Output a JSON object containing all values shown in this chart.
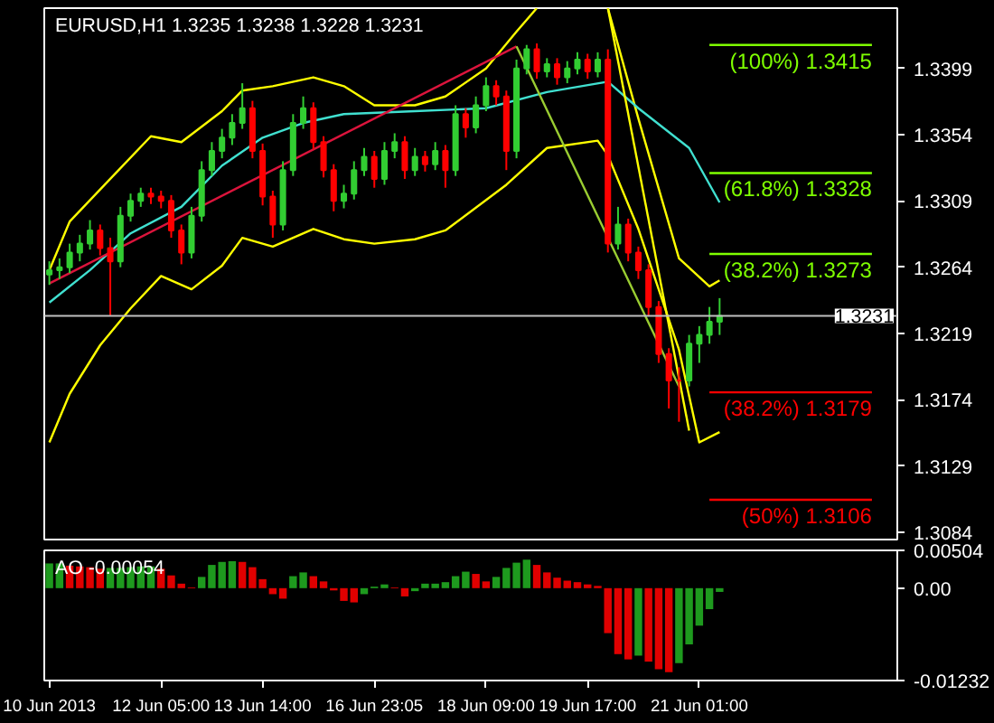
{
  "chart_data": [
    {
      "type": "candlestick",
      "title": "EURUSD,H1 1.3235 1.3238 1.3228 1.3231",
      "tick_labels": "y",
      "grid": false,
      "ylim": [
        1.3079,
        1.344
      ],
      "yticks": [
        1.3399,
        1.3354,
        1.3309,
        1.3264,
        1.3219,
        1.3174,
        1.3129,
        1.3084
      ],
      "categories": [
        null,
        null,
        null,
        null,
        null,
        null,
        null,
        null,
        null,
        null,
        null,
        null,
        null,
        null,
        null,
        null,
        null,
        null,
        null,
        null,
        null,
        null,
        null,
        null,
        null,
        null,
        null,
        null,
        null,
        null,
        null,
        null,
        null,
        null,
        null,
        null,
        null,
        null,
        null,
        null,
        null,
        null,
        null,
        null,
        null,
        null,
        null,
        null,
        null,
        null,
        null,
        null,
        null,
        null,
        null,
        null,
        null,
        null,
        null,
        null,
        null,
        null,
        null,
        null,
        null,
        null,
        null,
        null,
        null,
        null,
        null,
        null,
        null,
        null,
        null,
        null,
        null,
        null,
        null,
        null,
        null,
        null,
        null,
        null
      ],
      "ohlc": [
        [
          1.3259,
          1.3268,
          1.3252,
          1.3262
        ],
        [
          1.3262,
          1.327,
          1.3256,
          1.3264
        ],
        [
          1.3264,
          1.328,
          1.326,
          1.3274
        ],
        [
          1.3274,
          1.3286,
          1.3268,
          1.328
        ],
        [
          1.328,
          1.3296,
          1.3276,
          1.3289
        ],
        [
          1.3289,
          1.3293,
          1.3272,
          1.3277
        ],
        [
          1.3277,
          1.3284,
          1.3231,
          1.3268
        ],
        [
          1.3268,
          1.3305,
          1.3264,
          1.3299
        ],
        [
          1.3299,
          1.3314,
          1.3295,
          1.3309
        ],
        [
          1.3309,
          1.3318,
          1.3305,
          1.3314
        ],
        [
          1.3314,
          1.3318,
          1.3307,
          1.3312
        ],
        [
          1.3312,
          1.3316,
          1.3304,
          1.3309
        ],
        [
          1.3309,
          1.3313,
          1.3284,
          1.3289
        ],
        [
          1.3289,
          1.3293,
          1.3266,
          1.3274
        ],
        [
          1.3274,
          1.3305,
          1.327,
          1.3299
        ],
        [
          1.3299,
          1.3336,
          1.3295,
          1.333
        ],
        [
          1.333,
          1.3349,
          1.3326,
          1.3343
        ],
        [
          1.3343,
          1.3358,
          1.3338,
          1.3352
        ],
        [
          1.3352,
          1.3368,
          1.3347,
          1.3362
        ],
        [
          1.3362,
          1.3389,
          1.3358,
          1.3372
        ],
        [
          1.3372,
          1.3377,
          1.3338,
          1.3343
        ],
        [
          1.3343,
          1.3348,
          1.3306,
          1.3312
        ],
        [
          1.3312,
          1.3316,
          1.3284,
          1.3293
        ],
        [
          1.3293,
          1.3336,
          1.3289,
          1.333
        ],
        [
          1.333,
          1.3368,
          1.3326,
          1.3362
        ],
        [
          1.3362,
          1.338,
          1.3358,
          1.3372
        ],
        [
          1.3372,
          1.3376,
          1.3344,
          1.3349
        ],
        [
          1.3349,
          1.3353,
          1.3325,
          1.333
        ],
        [
          1.333,
          1.3334,
          1.3302,
          1.3309
        ],
        [
          1.3309,
          1.332,
          1.3304,
          1.3314
        ],
        [
          1.3314,
          1.3336,
          1.331,
          1.333
        ],
        [
          1.333,
          1.3345,
          1.3326,
          1.3339
        ],
        [
          1.3339,
          1.3343,
          1.3318,
          1.3324
        ],
        [
          1.3324,
          1.3349,
          1.332,
          1.3343
        ],
        [
          1.3343,
          1.3355,
          1.3338,
          1.3349
        ],
        [
          1.3349,
          1.3353,
          1.3324,
          1.333
        ],
        [
          1.333,
          1.3345,
          1.3326,
          1.3339
        ],
        [
          1.3339,
          1.3343,
          1.3329,
          1.3334
        ],
        [
          1.3334,
          1.3349,
          1.333,
          1.3343
        ],
        [
          1.3343,
          1.3347,
          1.3318,
          1.333
        ],
        [
          1.333,
          1.3374,
          1.3326,
          1.3368
        ],
        [
          1.3368,
          1.3372,
          1.3352,
          1.3359
        ],
        [
          1.3359,
          1.338,
          1.3355,
          1.3374
        ],
        [
          1.3374,
          1.3393,
          1.337,
          1.3387
        ],
        [
          1.3387,
          1.3391,
          1.3374,
          1.338
        ],
        [
          1.338,
          1.3384,
          1.333,
          1.3343
        ],
        [
          1.3343,
          1.3405,
          1.3338,
          1.3399
        ],
        [
          1.3399,
          1.3415,
          1.3395,
          1.3412
        ],
        [
          1.3412,
          1.3416,
          1.3392,
          1.3397
        ],
        [
          1.3397,
          1.3406,
          1.3393,
          1.3402
        ],
        [
          1.3402,
          1.3406,
          1.3388,
          1.3393
        ],
        [
          1.3393,
          1.3404,
          1.3389,
          1.3399
        ],
        [
          1.3399,
          1.341,
          1.3395,
          1.3405
        ],
        [
          1.3405,
          1.3409,
          1.3392,
          1.3397
        ],
        [
          1.3397,
          1.341,
          1.3393,
          1.3405
        ],
        [
          1.3405,
          1.3412,
          1.3274,
          1.328
        ],
        [
          1.328,
          1.3305,
          1.3276,
          1.3293
        ],
        [
          1.3293,
          1.3297,
          1.3268,
          1.3274
        ],
        [
          1.3274,
          1.3278,
          1.3256,
          1.3262
        ],
        [
          1.3262,
          1.3266,
          1.3231,
          1.3237
        ],
        [
          1.3237,
          1.3241,
          1.3199,
          1.3205
        ],
        [
          1.3205,
          1.3209,
          1.3168,
          1.3187
        ],
        [
          1.3187,
          1.3196,
          1.3159,
          1.3187
        ],
        [
          1.3187,
          1.3218,
          1.3183,
          1.3212
        ],
        [
          1.3212,
          1.3224,
          1.3199,
          1.3218
        ],
        [
          1.3218,
          1.3237,
          1.3212,
          1.3227
        ],
        [
          1.3227,
          1.3243,
          1.3218,
          1.3231
        ],
        null,
        null,
        null,
        null,
        null,
        null,
        null,
        null,
        null,
        null,
        null,
        null,
        null,
        null,
        null,
        null,
        null
      ],
      "colors": [
        "#32cd32",
        "#32cd32",
        "#32cd32",
        "#32cd32",
        "#32cd32",
        "#ff0000",
        "#ff0000",
        "#32cd32",
        "#32cd32",
        "#32cd32",
        "#ff0000",
        "#ff0000",
        "#ff0000",
        "#ff0000",
        "#32cd32",
        "#32cd32",
        "#32cd32",
        "#32cd32",
        "#32cd32",
        "#32cd32",
        "#ff0000",
        "#ff0000",
        "#ff0000",
        "#32cd32",
        "#32cd32",
        "#32cd32",
        "#ff0000",
        "#ff0000",
        "#ff0000",
        "#32cd32",
        "#32cd32",
        "#32cd32",
        "#ff0000",
        "#32cd32",
        "#32cd32",
        "#ff0000",
        "#32cd32",
        "#ff0000",
        "#32cd32",
        "#ff0000",
        "#32cd32",
        "#ff0000",
        "#32cd32",
        "#32cd32",
        "#ff0000",
        "#ff0000",
        "#32cd32",
        "#32cd32",
        "#ff0000",
        "#32cd32",
        "#ff0000",
        "#32cd32",
        "#32cd32",
        "#ff0000",
        "#32cd32",
        "#ff0000",
        "#32cd32",
        "#ff0000",
        "#ff0000",
        "#ff0000",
        "#ff0000",
        "#ff0000",
        "#ff0000",
        "#32cd32",
        "#32cd32",
        "#32cd32",
        "#32cd32",
        null,
        null,
        null,
        null,
        null,
        null,
        null,
        null,
        null,
        null,
        null,
        null,
        null,
        null,
        null,
        null,
        null
      ],
      "series": [
        {
          "type": "line",
          "color": "#ffff00",
          "values": [
            1.3262,
            null,
            1.3295,
            null,
            null,
            null,
            1.3324,
            null,
            null,
            null,
            1.3353,
            null,
            null,
            1.3349,
            null,
            null,
            null,
            1.337,
            null,
            1.3384,
            null,
            null,
            1.3387,
            null,
            null,
            null,
            1.3393,
            null,
            null,
            1.3387,
            null,
            null,
            1.3374,
            null,
            null,
            null,
            1.3374,
            null,
            null,
            1.338,
            null,
            null,
            null,
            1.3399,
            null,
            null,
            1.3424,
            null,
            1.344,
            null,
            null,
            null,
            null,
            null,
            null,
            null,
            null,
            null,
            null,
            null,
            null,
            null,
            null,
            null,
            null,
            null,
            null,
            null,
            null,
            null,
            null,
            null,
            null,
            null,
            null,
            null,
            null,
            null,
            null,
            null,
            null,
            null,
            null,
            null
          ]
        },
        {
          "type": "line",
          "color": "#ffff00",
          "values": [
            null,
            null,
            null,
            null,
            null,
            null,
            null,
            null,
            null,
            null,
            null,
            null,
            null,
            null,
            null,
            null,
            null,
            null,
            null,
            null,
            null,
            null,
            null,
            null,
            null,
            null,
            null,
            null,
            null,
            null,
            null,
            null,
            null,
            null,
            null,
            null,
            null,
            null,
            null,
            null,
            null,
            null,
            null,
            null,
            null,
            null,
            null,
            null,
            null,
            null,
            null,
            null,
            null,
            null,
            null,
            1.344,
            null,
            null,
            1.3365,
            null,
            null,
            null,
            1.327,
            null,
            null,
            1.3251,
            1.3255,
            null,
            null,
            null,
            null,
            null,
            null,
            null,
            null,
            null,
            null,
            null,
            null,
            null,
            null,
            null,
            null,
            null
          ]
        },
        {
          "type": "line",
          "color": "#ffff00",
          "values": [
            1.3145,
            null,
            1.3178,
            null,
            null,
            1.3211,
            null,
            null,
            1.3236,
            null,
            null,
            1.3258,
            null,
            null,
            1.3249,
            null,
            null,
            1.3265,
            null,
            1.3284,
            null,
            null,
            1.3278,
            null,
            null,
            null,
            1.329,
            null,
            null,
            1.3283,
            null,
            null,
            1.328,
            null,
            null,
            null,
            1.3283,
            null,
            null,
            1.3289,
            null,
            null,
            null,
            null,
            null,
            1.332,
            null,
            null,
            null,
            1.3345,
            null,
            null,
            null,
            null,
            1.335,
            1.334,
            null,
            null,
            1.329,
            null,
            null,
            null,
            1.3208,
            null,
            1.3145,
            null,
            1.3152,
            null,
            null,
            null,
            null,
            null,
            null,
            null,
            null,
            null,
            null,
            null,
            null,
            null,
            null,
            null,
            null,
            null
          ]
        },
        {
          "type": "line",
          "color": "#40e0d0",
          "values": [
            1.324,
            null,
            null,
            null,
            1.3262,
            null,
            null,
            null,
            1.3287,
            null,
            null,
            null,
            null,
            1.3305,
            null,
            null,
            null,
            1.3333,
            null,
            null,
            null,
            1.3352,
            null,
            null,
            null,
            1.3362,
            null,
            null,
            null,
            1.3368,
            null,
            null,
            null,
            null,
            null,
            null,
            1.337,
            null,
            null,
            null,
            null,
            null,
            null,
            1.3372,
            null,
            null,
            null,
            null,
            null,
            1.3383,
            null,
            null,
            null,
            null,
            null,
            1.339,
            null,
            null,
            1.3372,
            null,
            null,
            null,
            null,
            1.3345,
            null,
            null,
            1.3308,
            null,
            null,
            null,
            null,
            null,
            null,
            null,
            null,
            null,
            null,
            null,
            null,
            null,
            null,
            null,
            null,
            null
          ]
        },
        {
          "type": "line",
          "color": "#dc143c",
          "values": [
            1.3253,
            null,
            null,
            null,
            null,
            null,
            null,
            null,
            null,
            null,
            null,
            null,
            null,
            null,
            null,
            null,
            null,
            null,
            null,
            null,
            null,
            null,
            null,
            null,
            null,
            null,
            null,
            null,
            null,
            null,
            null,
            null,
            null,
            null,
            null,
            null,
            null,
            null,
            null,
            null,
            null,
            null,
            null,
            null,
            null,
            null,
            1.3414,
            null,
            null,
            null,
            null,
            null,
            null,
            null,
            null,
            null,
            null,
            null,
            null,
            null,
            null,
            null,
            null,
            null,
            null,
            null,
            null,
            null,
            null,
            null,
            null,
            null,
            null,
            null,
            null,
            null,
            null,
            null,
            null,
            null,
            null,
            null,
            null,
            null
          ]
        },
        {
          "type": "line",
          "color": "#ffff00",
          "values": [
            null,
            null,
            null,
            null,
            null,
            null,
            null,
            null,
            null,
            null,
            null,
            null,
            null,
            null,
            null,
            null,
            null,
            null,
            null,
            null,
            null,
            null,
            null,
            null,
            null,
            null,
            null,
            null,
            null,
            null,
            null,
            null,
            null,
            null,
            null,
            null,
            null,
            null,
            null,
            null,
            null,
            null,
            null,
            null,
            null,
            null,
            null,
            null,
            null,
            null,
            null,
            null,
            null,
            null,
            null,
            1.344,
            null,
            null,
            null,
            null,
            null,
            null,
            null,
            1.3153,
            null,
            null,
            null,
            null,
            null,
            null,
            null,
            null,
            null,
            null,
            null,
            null,
            null,
            null,
            null,
            null,
            null,
            null,
            null,
            null
          ]
        },
        {
          "type": "line",
          "color": "#9acd32",
          "values": [
            null,
            null,
            null,
            null,
            null,
            null,
            null,
            null,
            null,
            null,
            null,
            null,
            null,
            null,
            null,
            null,
            null,
            null,
            null,
            null,
            null,
            null,
            null,
            null,
            null,
            null,
            null,
            null,
            null,
            null,
            null,
            null,
            null,
            null,
            null,
            null,
            null,
            null,
            null,
            null,
            null,
            null,
            null,
            null,
            null,
            null,
            1.3414,
            null,
            null,
            null,
            null,
            null,
            null,
            null,
            null,
            null,
            null,
            null,
            null,
            null,
            null,
            null,
            1.3183,
            null,
            null,
            null,
            null,
            null,
            null,
            null,
            null,
            null,
            null,
            null,
            null,
            null,
            null,
            null,
            null,
            null,
            null,
            null,
            null,
            null
          ]
        },
        {
          "type": "line",
          "color": "#7fff00",
          "values": [
            null,
            null,
            null,
            null,
            null,
            null,
            null,
            null,
            null,
            null,
            null,
            null,
            null,
            null,
            null,
            null,
            null,
            null,
            null,
            null,
            null,
            null,
            null,
            null,
            null,
            null,
            null,
            null,
            null,
            null,
            null,
            null,
            null,
            null,
            null,
            null,
            null,
            null,
            null,
            null,
            null,
            null,
            null,
            null,
            null,
            null,
            null,
            null,
            null,
            null,
            null,
            null,
            null,
            null,
            null,
            null,
            null,
            null,
            null,
            null,
            null,
            null,
            null,
            null,
            null,
            1.3415,
            null,
            null,
            null,
            null,
            null,
            null,
            null,
            null,
            null,
            null,
            null,
            null,
            null,
            null,
            null,
            1.3415,
            null,
            null
          ]
        },
        {
          "type": "line",
          "color": "#7fff00",
          "values": [
            null,
            null,
            null,
            null,
            null,
            null,
            null,
            null,
            null,
            null,
            null,
            null,
            null,
            null,
            null,
            null,
            null,
            null,
            null,
            null,
            null,
            null,
            null,
            null,
            null,
            null,
            null,
            null,
            null,
            null,
            null,
            null,
            null,
            null,
            null,
            null,
            null,
            null,
            null,
            null,
            null,
            null,
            null,
            null,
            null,
            null,
            null,
            null,
            null,
            null,
            null,
            null,
            null,
            null,
            null,
            null,
            null,
            null,
            null,
            null,
            null,
            null,
            null,
            null,
            null,
            1.3328,
            null,
            null,
            null,
            null,
            null,
            null,
            null,
            null,
            null,
            null,
            null,
            null,
            null,
            null,
            null,
            1.3328,
            null,
            null
          ]
        },
        {
          "type": "line",
          "color": "#7fff00",
          "values": [
            null,
            null,
            null,
            null,
            null,
            null,
            null,
            null,
            null,
            null,
            null,
            null,
            null,
            null,
            null,
            null,
            null,
            null,
            null,
            null,
            null,
            null,
            null,
            null,
            null,
            null,
            null,
            null,
            null,
            null,
            null,
            null,
            null,
            null,
            null,
            null,
            null,
            null,
            null,
            null,
            null,
            null,
            null,
            null,
            null,
            null,
            null,
            null,
            null,
            null,
            null,
            null,
            null,
            null,
            null,
            null,
            null,
            null,
            null,
            null,
            null,
            null,
            null,
            null,
            null,
            1.3273,
            null,
            null,
            null,
            null,
            null,
            null,
            null,
            null,
            null,
            null,
            null,
            null,
            null,
            null,
            null,
            1.3273,
            null,
            null
          ]
        },
        {
          "type": "line",
          "color": "#ff0000",
          "values": [
            null,
            null,
            null,
            null,
            null,
            null,
            null,
            null,
            null,
            null,
            null,
            null,
            null,
            null,
            null,
            null,
            null,
            null,
            null,
            null,
            null,
            null,
            null,
            null,
            null,
            null,
            null,
            null,
            null,
            null,
            null,
            null,
            null,
            null,
            null,
            null,
            null,
            null,
            null,
            null,
            null,
            null,
            null,
            null,
            null,
            null,
            null,
            null,
            null,
            null,
            null,
            null,
            null,
            null,
            null,
            null,
            null,
            null,
            null,
            null,
            null,
            null,
            null,
            null,
            null,
            1.3179,
            null,
            null,
            null,
            null,
            null,
            null,
            null,
            null,
            null,
            null,
            null,
            null,
            null,
            null,
            null,
            1.3179,
            null,
            null
          ]
        },
        {
          "type": "line",
          "color": "#ff0000",
          "values": [
            null,
            null,
            null,
            null,
            null,
            null,
            null,
            null,
            null,
            null,
            null,
            null,
            null,
            null,
            null,
            null,
            null,
            null,
            null,
            null,
            null,
            null,
            null,
            null,
            null,
            null,
            null,
            null,
            null,
            null,
            null,
            null,
            null,
            null,
            null,
            null,
            null,
            null,
            null,
            null,
            null,
            null,
            null,
            null,
            null,
            null,
            null,
            null,
            null,
            null,
            null,
            null,
            null,
            null,
            null,
            null,
            null,
            null,
            null,
            null,
            null,
            null,
            null,
            null,
            null,
            1.3106,
            null,
            null,
            null,
            null,
            null,
            null,
            null,
            null,
            null,
            null,
            null,
            null,
            null,
            null,
            null,
            1.3106,
            null,
            null
          ]
        }
      ],
      "ref_lines": [
        {
          "axis": "y",
          "value": 1.3231,
          "label": "1.3231",
          "color": "#c0c0c0"
        }
      ],
      "annotations": [
        {
          "text": "(100%) 1.3415",
          "y": 1.3415
        },
        {
          "text": "(61.8%) 1.3328",
          "y": 1.3328
        },
        {
          "text": "(38.2%) 1.3273",
          "y": 1.3273
        },
        {
          "text": "(38.2%) 1.3179",
          "y": 1.3179
        },
        {
          "text": "(50%) 1.3106",
          "y": 1.3106
        }
      ]
    },
    {
      "type": "bar",
      "title": "AO -0.00054",
      "grid": false,
      "ylim": [
        -0.01232,
        0.00504
      ],
      "yticks": [
        0.00504,
        {
          "value": 0,
          "label": "0.00"
        },
        -0.01232
      ],
      "categories": [
        "10 Jun 2013",
        null,
        null,
        null,
        null,
        null,
        null,
        null,
        null,
        null,
        null,
        "12 Jun 05:00",
        null,
        null,
        null,
        null,
        null,
        null,
        null,
        null,
        null,
        "13 Jun 14:00",
        null,
        null,
        null,
        null,
        null,
        null,
        null,
        null,
        null,
        null,
        "16 Jun 23:05",
        null,
        null,
        null,
        null,
        null,
        null,
        null,
        null,
        null,
        null,
        "18 Jun 09:00",
        null,
        null,
        null,
        null,
        null,
        null,
        null,
        null,
        null,
        "19 Jun 17:00",
        null,
        null,
        null,
        null,
        null,
        null,
        null,
        null,
        null,
        null,
        "21 Jun 01:00",
        null,
        null,
        null,
        null,
        null,
        null,
        null,
        null,
        null,
        null,
        null,
        null,
        null,
        null,
        null,
        null,
        null,
        null,
        null
      ],
      "values": [
        0.0033,
        0.0033,
        0.003,
        0.0029,
        0.0028,
        0.0026,
        0.0027,
        0.0027,
        0.0028,
        0.0029,
        0.0029,
        0.0026,
        0.0017,
        0.0006,
        0.0001,
        0.0015,
        0.0031,
        0.0035,
        0.0036,
        0.0035,
        0.0028,
        0.0012,
        -0.0008,
        -0.0014,
        0.0016,
        0.0021,
        0.0016,
        0.0009,
        -0.0003,
        -0.0017,
        -0.0019,
        -0.0008,
        0.0002,
        0.0005,
        0.0001,
        -0.0011,
        -0.0004,
        0.0006,
        0.0006,
        0.0008,
        0.0016,
        0.0022,
        0.0019,
        0.0009,
        0.0015,
        0.0027,
        0.0034,
        0.0038,
        0.0031,
        0.0021,
        0.0014,
        0.001,
        0.0008,
        0.0005,
        0.0003,
        -0.006,
        -0.0088,
        -0.0095,
        -0.009,
        -0.0098,
        -0.0108,
        -0.0112,
        -0.01,
        -0.0075,
        -0.005,
        -0.0028,
        -0.0005,
        null,
        null,
        null,
        null,
        null,
        null,
        null,
        null,
        null,
        null,
        null,
        null,
        null,
        null,
        null,
        null,
        null
      ],
      "colors": [
        "#1e9a1e",
        "#1e9a1e",
        "#e00000",
        "#e00000",
        "#e00000",
        "#e00000",
        "#1e9a1e",
        "#1e9a1e",
        "#1e9a1e",
        "#1e9a1e",
        "#1e9a1e",
        "#e00000",
        "#e00000",
        "#e00000",
        "#e00000",
        "#1e9a1e",
        "#1e9a1e",
        "#1e9a1e",
        "#1e9a1e",
        "#e00000",
        "#e00000",
        "#e00000",
        "#e00000",
        "#e00000",
        "#1e9a1e",
        "#1e9a1e",
        "#e00000",
        "#e00000",
        "#e00000",
        "#e00000",
        "#e00000",
        "#1e9a1e",
        "#1e9a1e",
        "#1e9a1e",
        "#e00000",
        "#e00000",
        "#1e9a1e",
        "#1e9a1e",
        "#1e9a1e",
        "#1e9a1e",
        "#1e9a1e",
        "#1e9a1e",
        "#e00000",
        "#e00000",
        "#1e9a1e",
        "#1e9a1e",
        "#1e9a1e",
        "#1e9a1e",
        "#e00000",
        "#e00000",
        "#e00000",
        "#e00000",
        "#e00000",
        "#e00000",
        "#e00000",
        "#e00000",
        "#e00000",
        "#e00000",
        "#1e9a1e",
        "#e00000",
        "#e00000",
        "#e00000",
        "#1e9a1e",
        "#1e9a1e",
        "#1e9a1e",
        "#1e9a1e",
        "#1e9a1e",
        null,
        null,
        null,
        null,
        null,
        null,
        null,
        null,
        null,
        null,
        null,
        null,
        null,
        null,
        null,
        null,
        null
      ]
    }
  ]
}
